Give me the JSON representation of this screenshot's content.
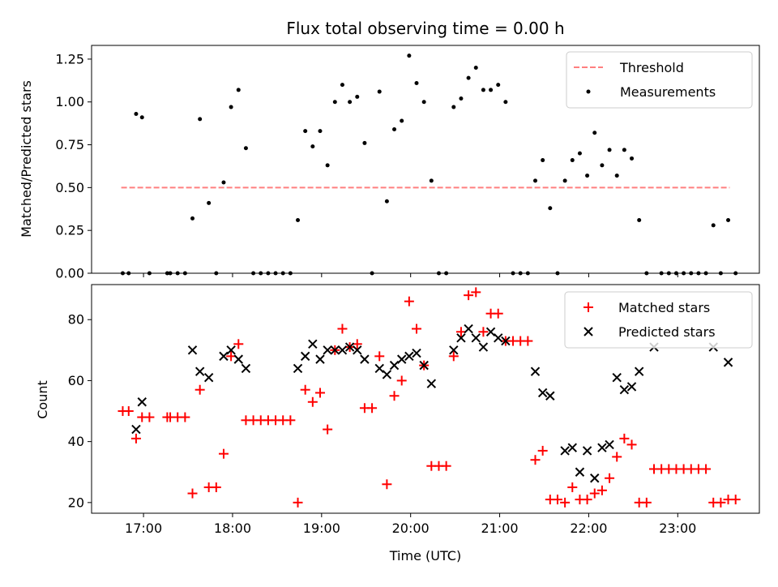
{
  "chart_data": [
    {
      "type": "scatter",
      "title": "Flux total observing time = 0.00 h",
      "xlabel": "",
      "ylabel": "Matched/Predicted stars",
      "ylim": [
        0,
        1.33
      ],
      "yticks": [
        "0.00",
        "0.25",
        "0.50",
        "0.75",
        "1.00",
        "1.25"
      ],
      "xlim": [
        "16:25",
        "23:55"
      ],
      "legend": {
        "position": "top-right",
        "entries": [
          "Threshold",
          "Measurements"
        ]
      },
      "threshold": {
        "name": "Threshold",
        "value": 0.5,
        "color": "#ff7f7f",
        "x": [
          "16:45",
          "23:35"
        ]
      },
      "series": [
        {
          "name": "Measurements",
          "color": "#000000",
          "points": [
            [
              "16:46",
              0.0
            ],
            [
              "16:50",
              0.0
            ],
            [
              "16:55",
              0.93
            ],
            [
              "16:59",
              0.91
            ],
            [
              "17:04",
              0.0
            ],
            [
              "17:16",
              0.0
            ],
            [
              "17:18",
              0.0
            ],
            [
              "17:23",
              0.0
            ],
            [
              "17:28",
              0.0
            ],
            [
              "17:33",
              0.32
            ],
            [
              "17:38",
              0.9
            ],
            [
              "17:44",
              0.41
            ],
            [
              "17:49",
              0.0
            ],
            [
              "17:54",
              0.53
            ],
            [
              "17:59",
              0.97
            ],
            [
              "18:04",
              1.07
            ],
            [
              "18:09",
              0.73
            ],
            [
              "18:14",
              0.0
            ],
            [
              "18:19",
              0.0
            ],
            [
              "18:24",
              0.0
            ],
            [
              "18:29",
              0.0
            ],
            [
              "18:34",
              0.0
            ],
            [
              "18:39",
              0.0
            ],
            [
              "18:44",
              0.31
            ],
            [
              "18:49",
              0.83
            ],
            [
              "18:54",
              0.74
            ],
            [
              "18:59",
              0.83
            ],
            [
              "19:04",
              0.63
            ],
            [
              "19:09",
              1.0
            ],
            [
              "19:14",
              1.1
            ],
            [
              "19:19",
              1.0
            ],
            [
              "19:24",
              1.03
            ],
            [
              "19:29",
              0.76
            ],
            [
              "19:34",
              0.0
            ],
            [
              "19:39",
              1.06
            ],
            [
              "19:44",
              0.42
            ],
            [
              "19:49",
              0.84
            ],
            [
              "19:54",
              0.89
            ],
            [
              "19:59",
              1.27
            ],
            [
              "20:04",
              1.11
            ],
            [
              "20:09",
              1.0
            ],
            [
              "20:14",
              0.54
            ],
            [
              "20:19",
              0.0
            ],
            [
              "20:24",
              0.0
            ],
            [
              "20:29",
              0.97
            ],
            [
              "20:34",
              1.02
            ],
            [
              "20:39",
              1.14
            ],
            [
              "20:44",
              1.2
            ],
            [
              "20:49",
              1.07
            ],
            [
              "20:54",
              1.07
            ],
            [
              "20:59",
              1.1
            ],
            [
              "21:04",
              1.0
            ],
            [
              "21:09",
              0.0
            ],
            [
              "21:14",
              0.0
            ],
            [
              "21:19",
              0.0
            ],
            [
              "21:24",
              0.54
            ],
            [
              "21:29",
              0.66
            ],
            [
              "21:34",
              0.38
            ],
            [
              "21:39",
              0.0
            ],
            [
              "21:44",
              0.54
            ],
            [
              "21:49",
              0.66
            ],
            [
              "21:54",
              0.7
            ],
            [
              "21:59",
              0.57
            ],
            [
              "22:04",
              0.82
            ],
            [
              "22:09",
              0.63
            ],
            [
              "22:14",
              0.72
            ],
            [
              "22:19",
              0.57
            ],
            [
              "22:24",
              0.72
            ],
            [
              "22:29",
              0.67
            ],
            [
              "22:34",
              0.31
            ],
            [
              "22:39",
              0.0
            ],
            [
              "22:49",
              0.0
            ],
            [
              "22:54",
              0.0
            ],
            [
              "22:59",
              0.0
            ],
            [
              "23:04",
              0.0
            ],
            [
              "23:09",
              0.0
            ],
            [
              "23:14",
              0.0
            ],
            [
              "23:19",
              0.0
            ],
            [
              "23:24",
              0.28
            ],
            [
              "23:29",
              0.0
            ],
            [
              "23:34",
              0.31
            ],
            [
              "23:39",
              0.0
            ]
          ]
        }
      ]
    },
    {
      "type": "scatter",
      "title": "",
      "xlabel": "Time (UTC)",
      "ylabel": "Count",
      "ylim": [
        16.5,
        91.5
      ],
      "yticks": [
        "20",
        "40",
        "60",
        "80"
      ],
      "xlim": [
        "16:25",
        "23:55"
      ],
      "xticks": [
        "17:00",
        "18:00",
        "19:00",
        "20:00",
        "21:00",
        "22:00",
        "23:00"
      ],
      "legend": {
        "position": "top-right",
        "entries": [
          "Matched stars",
          "Predicted stars"
        ]
      },
      "series": [
        {
          "name": "Matched stars",
          "marker": "plus",
          "color": "#ff0000",
          "points": [
            [
              "16:46",
              50
            ],
            [
              "16:50",
              50
            ],
            [
              "16:55",
              41
            ],
            [
              "16:59",
              48
            ],
            [
              "17:04",
              48
            ],
            [
              "17:16",
              48
            ],
            [
              "17:18",
              48
            ],
            [
              "17:23",
              48
            ],
            [
              "17:28",
              48
            ],
            [
              "17:33",
              23
            ],
            [
              "17:38",
              57
            ],
            [
              "17:44",
              25
            ],
            [
              "17:49",
              25
            ],
            [
              "17:54",
              36
            ],
            [
              "17:59",
              68
            ],
            [
              "18:04",
              72
            ],
            [
              "18:09",
              47
            ],
            [
              "18:14",
              47
            ],
            [
              "18:19",
              47
            ],
            [
              "18:24",
              47
            ],
            [
              "18:29",
              47
            ],
            [
              "18:34",
              47
            ],
            [
              "18:39",
              47
            ],
            [
              "18:44",
              20
            ],
            [
              "18:49",
              57
            ],
            [
              "18:54",
              53
            ],
            [
              "18:59",
              56
            ],
            [
              "19:04",
              44
            ],
            [
              "19:09",
              70
            ],
            [
              "19:14",
              77
            ],
            [
              "19:19",
              71
            ],
            [
              "19:24",
              72
            ],
            [
              "19:29",
              51
            ],
            [
              "19:34",
              51
            ],
            [
              "19:39",
              68
            ],
            [
              "19:44",
              26
            ],
            [
              "19:49",
              55
            ],
            [
              "19:54",
              60
            ],
            [
              "19:59",
              86
            ],
            [
              "20:04",
              77
            ],
            [
              "20:09",
              65
            ],
            [
              "20:14",
              32
            ],
            [
              "20:19",
              32
            ],
            [
              "20:24",
              32
            ],
            [
              "20:29",
              68
            ],
            [
              "20:34",
              76
            ],
            [
              "20:39",
              88
            ],
            [
              "20:44",
              89
            ],
            [
              "20:49",
              76
            ],
            [
              "20:54",
              82
            ],
            [
              "20:59",
              82
            ],
            [
              "21:04",
              73
            ],
            [
              "21:09",
              73
            ],
            [
              "21:14",
              73
            ],
            [
              "21:19",
              73
            ],
            [
              "21:24",
              34
            ],
            [
              "21:29",
              37
            ],
            [
              "21:34",
              21
            ],
            [
              "21:39",
              21
            ],
            [
              "21:44",
              20
            ],
            [
              "21:49",
              25
            ],
            [
              "21:54",
              21
            ],
            [
              "21:59",
              21
            ],
            [
              "22:04",
              23
            ],
            [
              "22:09",
              24
            ],
            [
              "22:14",
              28
            ],
            [
              "22:19",
              35
            ],
            [
              "22:24",
              41
            ],
            [
              "22:29",
              39
            ],
            [
              "22:34",
              20
            ],
            [
              "22:39",
              20
            ],
            [
              "22:44",
              31
            ],
            [
              "22:49",
              31
            ],
            [
              "22:54",
              31
            ],
            [
              "22:59",
              31
            ],
            [
              "23:04",
              31
            ],
            [
              "23:09",
              31
            ],
            [
              "23:14",
              31
            ],
            [
              "23:19",
              31
            ],
            [
              "23:24",
              20
            ],
            [
              "23:29",
              20
            ],
            [
              "23:34",
              21
            ],
            [
              "23:39",
              21
            ]
          ]
        },
        {
          "name": "Predicted stars",
          "marker": "x",
          "color": "#000000",
          "points": [
            [
              "16:55",
              44
            ],
            [
              "16:59",
              53
            ],
            [
              "17:33",
              70
            ],
            [
              "17:38",
              63
            ],
            [
              "17:44",
              61
            ],
            [
              "17:54",
              68
            ],
            [
              "17:59",
              70
            ],
            [
              "18:04",
              67
            ],
            [
              "18:09",
              64
            ],
            [
              "18:44",
              64
            ],
            [
              "18:49",
              68
            ],
            [
              "18:54",
              72
            ],
            [
              "18:59",
              67
            ],
            [
              "19:04",
              70
            ],
            [
              "19:09",
              70
            ],
            [
              "19:14",
              70
            ],
            [
              "19:19",
              71
            ],
            [
              "19:24",
              70
            ],
            [
              "19:29",
              67
            ],
            [
              "19:39",
              64
            ],
            [
              "19:44",
              62
            ],
            [
              "19:49",
              65
            ],
            [
              "19:54",
              67
            ],
            [
              "19:59",
              68
            ],
            [
              "20:04",
              69
            ],
            [
              "20:09",
              65
            ],
            [
              "20:14",
              59
            ],
            [
              "20:29",
              70
            ],
            [
              "20:34",
              74
            ],
            [
              "20:39",
              77
            ],
            [
              "20:44",
              74
            ],
            [
              "20:49",
              71
            ],
            [
              "20:54",
              76
            ],
            [
              "20:59",
              74
            ],
            [
              "21:04",
              73
            ],
            [
              "21:24",
              63
            ],
            [
              "21:29",
              56
            ],
            [
              "21:34",
              55
            ],
            [
              "21:44",
              37
            ],
            [
              "21:49",
              38
            ],
            [
              "21:54",
              30
            ],
            [
              "21:59",
              37
            ],
            [
              "22:04",
              28
            ],
            [
              "22:09",
              38
            ],
            [
              "22:14",
              39
            ],
            [
              "22:19",
              61
            ],
            [
              "22:24",
              57
            ],
            [
              "22:29",
              58
            ],
            [
              "22:34",
              63
            ],
            [
              "22:44",
              71
            ],
            [
              "23:24",
              71
            ],
            [
              "23:34",
              66
            ]
          ]
        }
      ]
    }
  ]
}
